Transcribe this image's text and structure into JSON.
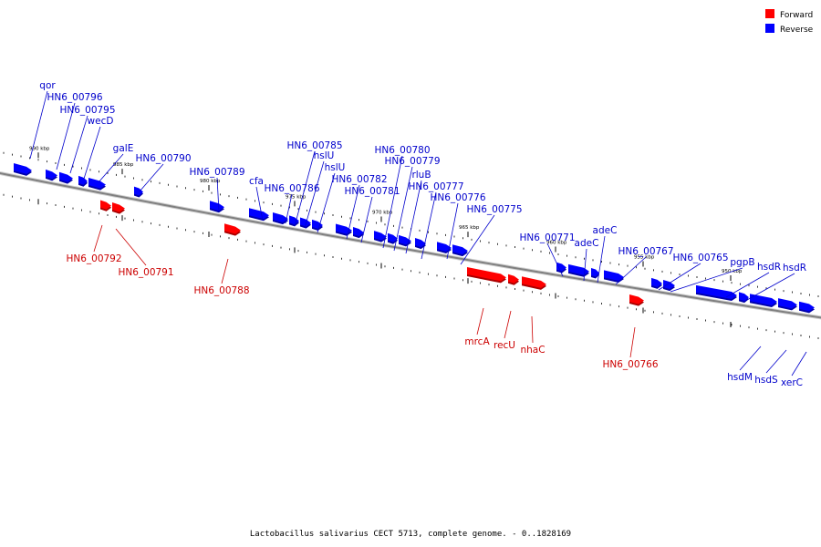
{
  "caption": "Lactobacillus salivarius CECT 5713, complete genome. - 0..1828169",
  "legend": [
    {
      "label": "Forward",
      "color": "#ff0000"
    },
    {
      "label": "Reverse",
      "color": "#0000ff"
    }
  ],
  "colors": {
    "forward": "#ff0000",
    "reverse": "#0000ff",
    "backbone": "#808080",
    "label_forward": "#cc0000",
    "label_reverse": "#0000cc"
  },
  "ticks": [
    {
      "label": "990 kbp"
    },
    {
      "label": "985 kbp"
    },
    {
      "label": "980 kbp"
    },
    {
      "label": "975 kbp"
    },
    {
      "label": "970 kbp"
    },
    {
      "label": "965 kbp"
    },
    {
      "label": "960 kbp"
    },
    {
      "label": "955 kbp"
    },
    {
      "label": "950 kbp"
    }
  ],
  "genes": [
    {
      "name": "qor",
      "strand": "reverse"
    },
    {
      "name": "HN6_00796",
      "strand": "reverse"
    },
    {
      "name": "HN6_00795",
      "strand": "reverse"
    },
    {
      "name": "wecD",
      "strand": "reverse"
    },
    {
      "name": "galE",
      "strand": "reverse"
    },
    {
      "name": "HN6_00790",
      "strand": "reverse"
    },
    {
      "name": "HN6_00789",
      "strand": "reverse"
    },
    {
      "name": "cfa",
      "strand": "reverse"
    },
    {
      "name": "HN6_00786",
      "strand": "reverse"
    },
    {
      "name": "HN6_00785",
      "strand": "reverse"
    },
    {
      "name": "hslU",
      "strand": "reverse"
    },
    {
      "name": "hslU",
      "strand": "reverse"
    },
    {
      "name": "HN6_00782",
      "strand": "reverse"
    },
    {
      "name": "HN6_00781",
      "strand": "reverse"
    },
    {
      "name": "HN6_00780",
      "strand": "reverse"
    },
    {
      "name": "HN6_00779",
      "strand": "reverse"
    },
    {
      "name": "rluB",
      "strand": "reverse"
    },
    {
      "name": "HN6_00777",
      "strand": "reverse"
    },
    {
      "name": "HN6_00776",
      "strand": "reverse"
    },
    {
      "name": "HN6_00775",
      "strand": "reverse"
    },
    {
      "name": "HN6_00771",
      "strand": "reverse"
    },
    {
      "name": "adeC",
      "strand": "reverse"
    },
    {
      "name": "adeC",
      "strand": "reverse"
    },
    {
      "name": "HN6_00767",
      "strand": "reverse"
    },
    {
      "name": "HN6_00765",
      "strand": "reverse"
    },
    {
      "name": "pgpB",
      "strand": "reverse"
    },
    {
      "name": "hsdR",
      "strand": "reverse"
    },
    {
      "name": "hsdR",
      "strand": "reverse"
    },
    {
      "name": "hsdM",
      "strand": "reverse"
    },
    {
      "name": "hsdS",
      "strand": "reverse"
    },
    {
      "name": "xerC",
      "strand": "reverse"
    },
    {
      "name": "HN6_00792",
      "strand": "forward"
    },
    {
      "name": "HN6_00791",
      "strand": "forward"
    },
    {
      "name": "HN6_00788",
      "strand": "forward"
    },
    {
      "name": "mrcA",
      "strand": "forward"
    },
    {
      "name": "recU",
      "strand": "forward"
    },
    {
      "name": "nhaC",
      "strand": "forward"
    },
    {
      "name": "HN6_00766",
      "strand": "forward"
    }
  ]
}
